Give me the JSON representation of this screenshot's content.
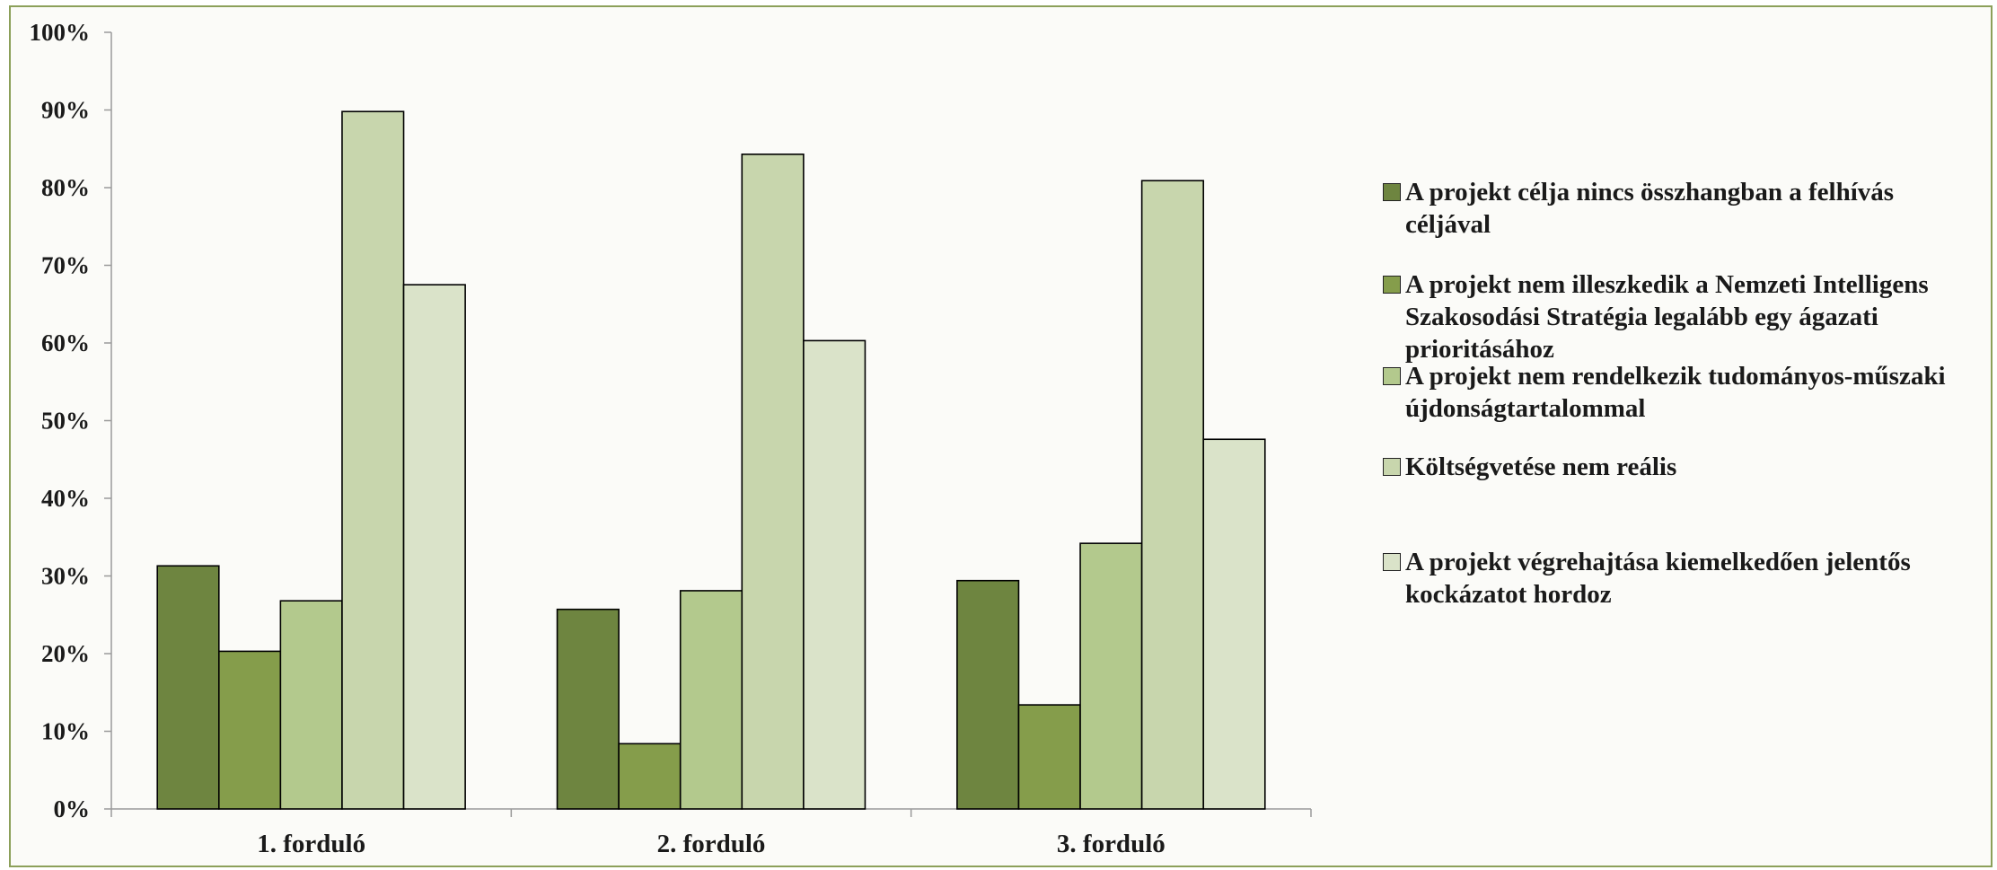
{
  "chart_data": {
    "type": "bar",
    "categories": [
      "1. forduló",
      "2. forduló",
      "3. forduló"
    ],
    "ylim": [
      0,
      100
    ],
    "yticks": [
      "0%",
      "10%",
      "20%",
      "30%",
      "40%",
      "50%",
      "60%",
      "70%",
      "80%",
      "90%",
      "100%"
    ],
    "series": [
      {
        "name": "A projekt célja nincs összhangban a felhívás céljával",
        "color": "#6e8540",
        "values": [
          31.3,
          25.7,
          29.4
        ]
      },
      {
        "name": "A projekt nem illeszkedik a Nemzeti Intelligens Szakosodási Stratégia legalább egy ágazati prioritásához",
        "color": "#859d4b",
        "values": [
          20.3,
          8.4,
          13.4
        ]
      },
      {
        "name": "A projekt nem rendelkezik tudományos-műszaki újdonságtartalommal",
        "color": "#b3c98d",
        "values": [
          26.8,
          28.1,
          34.2
        ]
      },
      {
        "name": "Költségvetése nem reális",
        "color": "#c8d6ad",
        "values": [
          89.8,
          84.3,
          80.9
        ]
      },
      {
        "name": "A projekt végrehajtása kiemelkedően jelentős kockázatot hordoz",
        "color": "#dae3c9",
        "values": [
          67.5,
          60.3,
          47.6
        ]
      }
    ],
    "legend_position": "right",
    "grid": false,
    "title": "",
    "xlabel": "",
    "ylabel": ""
  }
}
